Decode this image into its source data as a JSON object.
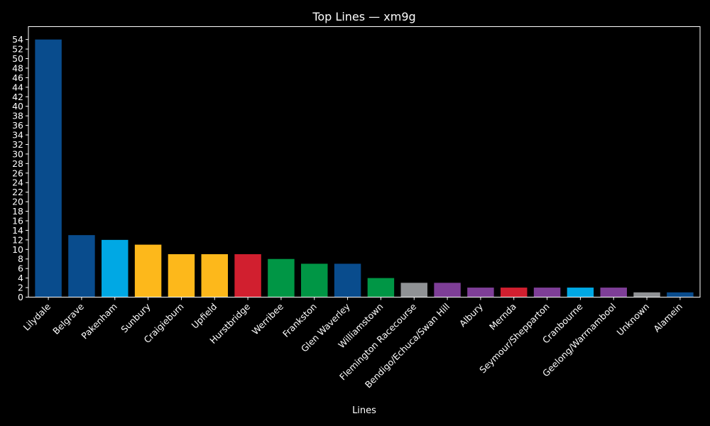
{
  "chart_data": {
    "type": "bar",
    "title": "Top Lines — xm9g",
    "xlabel": "Lines",
    "ylabel": "",
    "ylim": [
      0,
      56.7
    ],
    "yticks": [
      0,
      2,
      4,
      6,
      8,
      10,
      12,
      14,
      16,
      18,
      20,
      22,
      24,
      26,
      28,
      30,
      32,
      34,
      36,
      38,
      40,
      42,
      44,
      46,
      48,
      50,
      52,
      54
    ],
    "grid": false,
    "background": "#000000",
    "categories": [
      "Lilydale",
      "Belgrave",
      "Pakenham",
      "Sunbury",
      "Craigieburn",
      "Upfield",
      "Hurstbridge",
      "Werribee",
      "Frankston",
      "Glen Waverley",
      "Williamstown",
      "Flemington Racecourse",
      "Bendigo/Echuca/Swan Hill",
      "Albury",
      "Mernda",
      "Seymour/Shepparton",
      "Cranbourne",
      "Geelong/Warrnambool",
      "Unknown",
      "Alamein"
    ],
    "values": [
      54,
      13,
      12,
      11,
      9,
      9,
      9,
      8,
      7,
      7,
      4,
      3,
      3,
      2,
      2,
      2,
      2,
      2,
      1,
      1
    ],
    "colors": [
      "#094c8d",
      "#094c8d",
      "#00a8e4",
      "#fdb81b",
      "#fdb81b",
      "#fdb81b",
      "#d11f2f",
      "#009645",
      "#009645",
      "#094c8d",
      "#009645",
      "#909295",
      "#7e3e97",
      "#7e3e97",
      "#d11f2f",
      "#7e3e97",
      "#00a8e4",
      "#7e3e97",
      "#909295",
      "#094c8d"
    ]
  }
}
